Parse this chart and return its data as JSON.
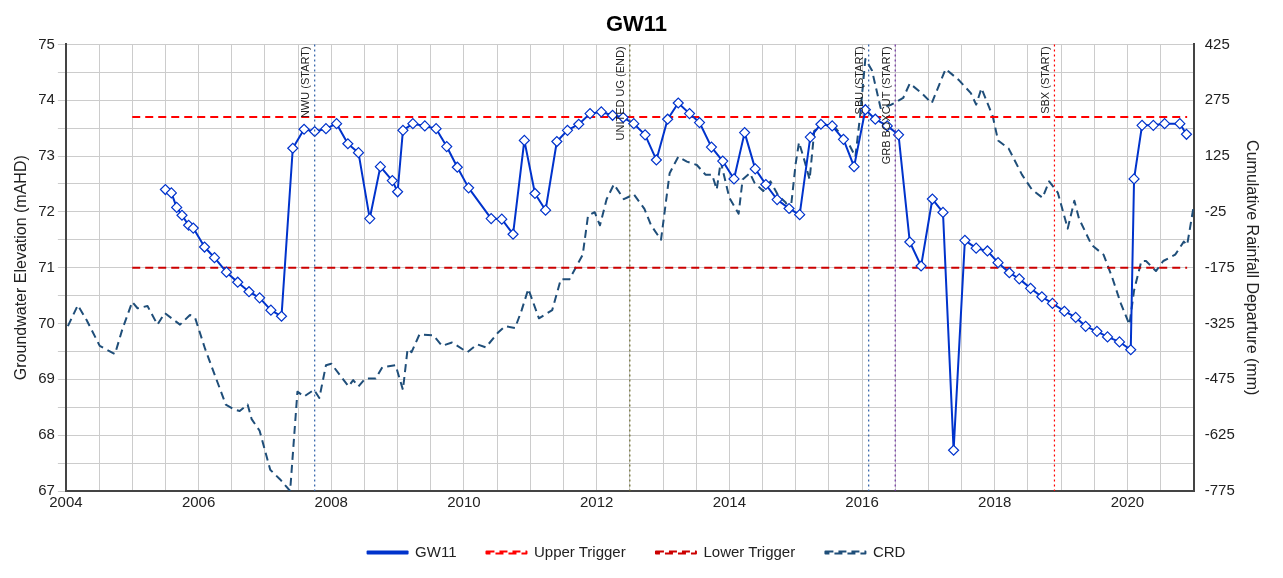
{
  "chart_data": {
    "type": "line",
    "title": "GW11",
    "ylabel": "Groundwater Elevation (mAHD)",
    "y2label": "Cumulative Rainfall Departure (mm)",
    "xlim": [
      2004,
      2021
    ],
    "xticks": [
      2004,
      {
        "value": 2004.5,
        "label": null
      },
      {
        "value": 2005,
        "label": null
      },
      {
        "value": 2005.5,
        "label": null
      },
      2006,
      {
        "value": 2006.5,
        "label": null
      },
      {
        "value": 2007,
        "label": null
      },
      {
        "value": 2007.5,
        "label": null
      },
      2008,
      {
        "value": 2008.5,
        "label": null
      },
      {
        "value": 2009,
        "label": null
      },
      {
        "value": 2009.5,
        "label": null
      },
      2010,
      {
        "value": 2010.5,
        "label": null
      },
      {
        "value": 2011,
        "label": null
      },
      {
        "value": 2011.5,
        "label": null
      },
      2012,
      {
        "value": 2012.5,
        "label": null
      },
      {
        "value": 2013,
        "label": null
      },
      {
        "value": 2013.5,
        "label": null
      },
      2014,
      {
        "value": 2014.5,
        "label": null
      },
      {
        "value": 2015,
        "label": null
      },
      {
        "value": 2015.5,
        "label": null
      },
      2016,
      {
        "value": 2016.5,
        "label": null
      },
      {
        "value": 2017,
        "label": null
      },
      {
        "value": 2017.5,
        "label": null
      },
      2018,
      {
        "value": 2018.5,
        "label": null
      },
      {
        "value": 2019,
        "label": null
      },
      {
        "value": 2019.5,
        "label": null
      },
      2020,
      {
        "value": 2020.5,
        "label": null
      },
      {
        "value": 2021,
        "label": null
      }
    ],
    "ylim": [
      67,
      75
    ],
    "yticks": [
      67,
      {
        "value": 67.5,
        "label": null
      },
      68,
      {
        "value": 68.5,
        "label": null
      },
      69,
      {
        "value": 69.5,
        "label": null
      },
      70,
      {
        "value": 70.5,
        "label": null
      },
      71,
      {
        "value": 71.5,
        "label": null
      },
      72,
      {
        "value": 72.5,
        "label": null
      },
      73,
      {
        "value": 73.5,
        "label": null
      },
      74,
      {
        "value": 74.5,
        "label": null
      },
      75
    ],
    "y2lim": [
      -775,
      425
    ],
    "y2ticks": [
      -775,
      -625,
      -475,
      -325,
      -175,
      -25,
      125,
      275,
      425
    ],
    "grid": true,
    "legend": "bottom",
    "series": [
      {
        "name": "GW11",
        "color": "#0033cc",
        "marker": "diamond",
        "line_style": "solid",
        "x": [
          2005.5,
          2005.59,
          2005.67,
          2005.75,
          2005.85,
          2005.92,
          2006.09,
          2006.24,
          2006.42,
          2006.59,
          2006.76,
          2006.92,
          2007.09,
          2007.25,
          2007.42,
          2007.59,
          2007.75,
          2007.92,
          2008.08,
          2008.25,
          2008.41,
          2008.58,
          2008.74,
          2008.92,
          2009.0,
          2009.08,
          2009.23,
          2009.41,
          2009.58,
          2009.74,
          2009.9,
          2010.07,
          2010.41,
          2010.57,
          2010.74,
          2010.91,
          2011.07,
          2011.23,
          2011.4,
          2011.56,
          2011.73,
          2011.9,
          2012.07,
          2012.24,
          2012.4,
          2012.56,
          2012.73,
          2012.9,
          2013.07,
          2013.23,
          2013.4,
          2013.55,
          2013.73,
          2013.9,
          2014.07,
          2014.23,
          2014.39,
          2014.55,
          2014.72,
          2014.9,
          2015.06,
          2015.22,
          2015.38,
          2015.55,
          2015.72,
          2015.88,
          2016.05,
          2016.2,
          2016.38,
          2016.55,
          2016.72,
          2016.89,
          2017.06,
          2017.22,
          2017.38,
          2017.55,
          2017.72,
          2017.89,
          2018.05,
          2018.22,
          2018.37,
          2018.54,
          2018.71,
          2018.87,
          2019.05,
          2019.22,
          2019.37,
          2019.54,
          2019.7,
          2019.88,
          2020.05,
          2020.1,
          2020.22,
          2020.39,
          2020.56,
          2020.79,
          2020.89
        ],
        "values": [
          72.4,
          72.34,
          72.08,
          71.94,
          71.76,
          71.71,
          71.37,
          71.18,
          70.92,
          70.74,
          70.57,
          70.46,
          70.24,
          70.13,
          73.14,
          73.48,
          73.44,
          73.49,
          73.58,
          73.22,
          73.06,
          71.88,
          72.81,
          72.56,
          72.36,
          73.46,
          73.58,
          73.54,
          73.49,
          73.17,
          72.8,
          72.43,
          71.88,
          71.87,
          71.6,
          73.28,
          72.33,
          72.03,
          73.26,
          73.46,
          73.57,
          73.76,
          73.79,
          73.73,
          73.69,
          73.58,
          73.38,
          72.93,
          73.66,
          73.95,
          73.76,
          73.6,
          73.16,
          72.91,
          72.59,
          73.42,
          72.77,
          72.49,
          72.22,
          72.06,
          71.95,
          73.34,
          73.57,
          73.54,
          73.3,
          72.81,
          73.83,
          73.66,
          73.54,
          73.38,
          71.46,
          71.03,
          72.23,
          71.99,
          67.73,
          71.49,
          71.35,
          71.3,
          71.09,
          70.91,
          70.8,
          70.63,
          70.48,
          70.36,
          70.22,
          70.11,
          69.95,
          69.86,
          69.76,
          69.67,
          69.53,
          72.59,
          73.55,
          73.55,
          73.58,
          73.58,
          73.39
        ]
      },
      {
        "name": "Upper Trigger",
        "color": "#ff0000",
        "marker": "none",
        "line_style": "dashed",
        "x": [
          2005,
          2020.9
        ],
        "values": [
          73.7,
          73.7
        ]
      },
      {
        "name": "Lower Trigger",
        "color": "#cc0000",
        "marker": "none",
        "line_style": "dashed",
        "x": [
          2005,
          2020.9
        ],
        "values": [
          71,
          71
        ]
      },
      {
        "name": "CRD",
        "color": "#1f4e79",
        "marker": "none",
        "line_style": "dashed",
        "axis": "y2",
        "x": [
          2004.03,
          2004.18,
          2004.31,
          2004.51,
          2004.74,
          2004.85,
          2005.0,
          2005.08,
          2005.23,
          2005.38,
          2005.49,
          2005.72,
          2005.87,
          2005.95,
          2006.1,
          2006.41,
          2006.54,
          2006.62,
          2006.74,
          2006.8,
          2006.92,
          2007.08,
          2007.23,
          2007.38,
          2007.49,
          2007.59,
          2007.74,
          2007.82,
          2007.92,
          2008.0,
          2008.26,
          2008.33,
          2008.41,
          2008.51,
          2008.67,
          2008.77,
          2008.97,
          2009.08,
          2009.15,
          2009.21,
          2009.33,
          2009.54,
          2009.67,
          2009.82,
          2010.05,
          2010.2,
          2010.33,
          2010.51,
          2010.62,
          2010.77,
          2010.87,
          2010.97,
          2011.13,
          2011.33,
          2011.46,
          2011.59,
          2011.79,
          2011.87,
          2011.97,
          2012.05,
          2012.15,
          2012.26,
          2012.41,
          2012.56,
          2012.72,
          2012.82,
          2012.97,
          2013.1,
          2013.23,
          2013.36,
          2013.51,
          2013.64,
          2013.74,
          2013.81,
          2013.87,
          2014.0,
          2014.14,
          2014.2,
          2014.31,
          2014.38,
          2014.51,
          2014.62,
          2014.74,
          2014.85,
          2014.92,
          2015.0,
          2015.05,
          2015.13,
          2015.21,
          2015.28,
          2015.44,
          2015.59,
          2015.8,
          2015.9,
          2015.97,
          2016.05,
          2016.15,
          2016.28,
          2016.44,
          2016.62,
          2016.72,
          2016.9,
          2017.05,
          2017.26,
          2017.46,
          2017.64,
          2017.72,
          2017.8,
          2017.97,
          2018.05,
          2018.21,
          2018.41,
          2018.56,
          2018.72,
          2018.82,
          2018.95,
          2019.1,
          2019.2,
          2019.27,
          2019.46,
          2019.64,
          2019.77,
          2019.9,
          2020.03,
          2020.1,
          2020.21,
          2020.28,
          2020.43,
          2020.54,
          2020.72,
          2020.85,
          2020.9,
          2021.0
        ],
        "values": [
          -332,
          -276,
          -315,
          -385,
          -407,
          -341,
          -267,
          -284,
          -278,
          -328,
          -297,
          -328,
          -302,
          -311,
          -394,
          -543,
          -556,
          -560,
          -543,
          -582,
          -613,
          -718,
          -744,
          -775,
          -508,
          -521,
          -503,
          -525,
          -437,
          -433,
          -494,
          -477,
          -494,
          -473,
          -473,
          -442,
          -437,
          -503,
          -394,
          -402,
          -354,
          -357,
          -385,
          -376,
          -402,
          -381,
          -389,
          -350,
          -332,
          -337,
          -289,
          -232,
          -311,
          -289,
          -206,
          -206,
          -140,
          -35,
          -26,
          -61,
          9,
          49,
          9,
          22,
          -17,
          -61,
          -100,
          79,
          123,
          110,
          101,
          75,
          75,
          35,
          110,
          13,
          -30,
          62,
          79,
          53,
          31,
          57,
          18,
          0,
          -26,
          105,
          162,
          114,
          62,
          193,
          210,
          202,
          158,
          123,
          232,
          386,
          355,
          254,
          263,
          281,
          320,
          294,
          267,
          359,
          329,
          294,
          263,
          307,
          232,
          167,
          145,
          75,
          35,
          13,
          57,
          27,
          -70,
          5,
          -43,
          -114,
          -140,
          -201,
          -271,
          -328,
          -236,
          -157,
          -157,
          -184,
          -157,
          -140,
          -105,
          -114,
          -8
        ]
      }
    ],
    "ref_lines": [
      {
        "axis": "x",
        "value": 2007.75,
        "label": "NWU (START)",
        "color": "#2e5fa8",
        "line_style": "dotted"
      },
      {
        "axis": "x",
        "value": 2012.5,
        "label": "UNITED UG (END)",
        "color": "#6b6b2a",
        "line_style": "dotted"
      },
      {
        "axis": "x",
        "value": 2016.1,
        "label": "SBU (START)",
        "color": "#2e5fa8",
        "line_style": "dotted"
      },
      {
        "axis": "x",
        "value": 2016.5,
        "label": "GRB BOXCUT (START)",
        "color": "#7030a0",
        "line_style": "dotted"
      },
      {
        "axis": "x",
        "value": 2018.9,
        "label": "SBX (START)",
        "color": "#ff0000",
        "line_style": "dotted"
      }
    ]
  }
}
